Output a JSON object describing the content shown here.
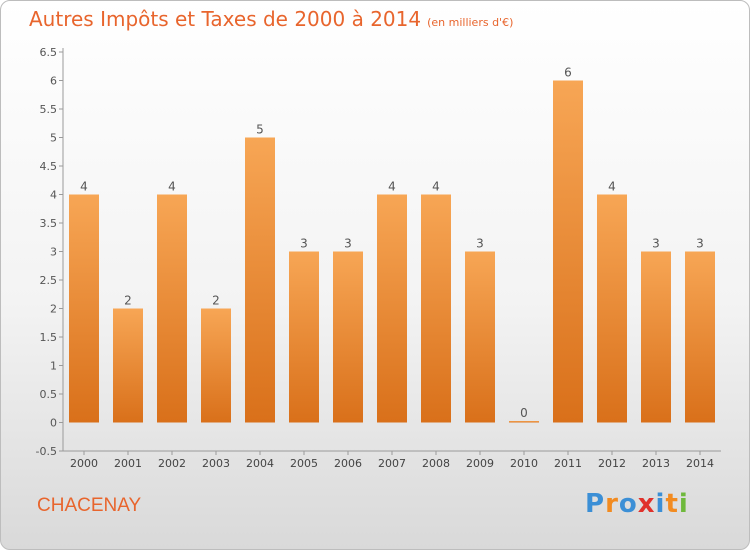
{
  "title": "Autres Impôts et Taxes de 2000 à 2014",
  "subtitle": "(en milliers d'€)",
  "town": "CHACENAY",
  "brand": {
    "letters": [
      "P",
      "r",
      "o",
      "x",
      "i",
      "t",
      "i"
    ],
    "colors": [
      "#3b8fd6",
      "#f28b20",
      "#3b8fd6",
      "#e0312b",
      "#3b8fd6",
      "#f28b20",
      "#6fb93c"
    ]
  },
  "colors": {
    "bar": "#f0892c",
    "bar_top": "#f7a655",
    "bar_bottom": "#d9701a",
    "accent": "#e8652d"
  },
  "chart_data": {
    "type": "bar",
    "categories": [
      "2000",
      "2001",
      "2002",
      "2003",
      "2004",
      "2005",
      "2006",
      "2007",
      "2008",
      "2009",
      "2010",
      "2011",
      "2012",
      "2013",
      "2014"
    ],
    "values": [
      4,
      2,
      4,
      2,
      5,
      3,
      3,
      4,
      4,
      3,
      0,
      6,
      4,
      3,
      3
    ],
    "value_labels": [
      "4",
      "2",
      "4",
      "2",
      "5",
      "3",
      "3",
      "4",
      "4",
      "3",
      "0",
      "6",
      "4",
      "3",
      "3"
    ],
    "yticks": [
      "-0.5",
      "0",
      "0.5",
      "1",
      "1.5",
      "2",
      "2.5",
      "3",
      "3.5",
      "4",
      "4.5",
      "5",
      "5.5",
      "6",
      "6.5"
    ],
    "ylim": [
      -0.5,
      6.5
    ],
    "grid": false,
    "legend": "none"
  }
}
